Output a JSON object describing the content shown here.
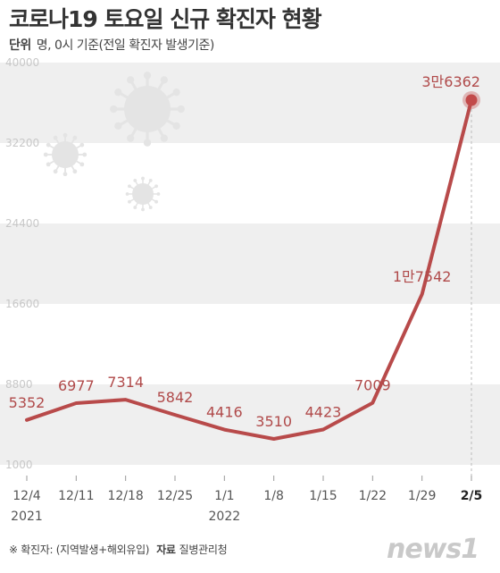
{
  "title": "코로나19 토요일 신규 확진자 현황",
  "unit_label": "단위",
  "unit_text": "명, 0시 기준(전일 확진자 발생기준)",
  "footnote": "※ 확진자: (지역발생+해외유입)",
  "source_label": "자료",
  "source": "질병관리청",
  "logo": "news1",
  "colors": {
    "line": "#b84a4a",
    "point": "#c24a4a",
    "label": "#b04a4a",
    "band": "#efefef",
    "tick": "#c8c8c8",
    "virus": "#e4e4e4"
  },
  "chart_data": {
    "type": "line",
    "ylim": [
      1000,
      40000
    ],
    "y_ticks": [
      "1000",
      "8800",
      "16600",
      "24400",
      "32200",
      "40000"
    ],
    "x_ticks": [
      "12/4",
      "12/11",
      "12/18",
      "12/25",
      "1/1",
      "1/8",
      "1/15",
      "1/22",
      "1/29",
      "2/5"
    ],
    "x_years": [
      "2021",
      "",
      "",
      "",
      "2022",
      "",
      "",
      "",
      "",
      ""
    ],
    "values": [
      5352,
      6977,
      7314,
      5842,
      4416,
      3510,
      4423,
      7009,
      17542,
      36362
    ],
    "data_labels": [
      "5352",
      "6977",
      "7314",
      "5842",
      "4416",
      "3510",
      "4423",
      "7009",
      "1만7542",
      "3만6362"
    ],
    "highlight_index": 9
  }
}
